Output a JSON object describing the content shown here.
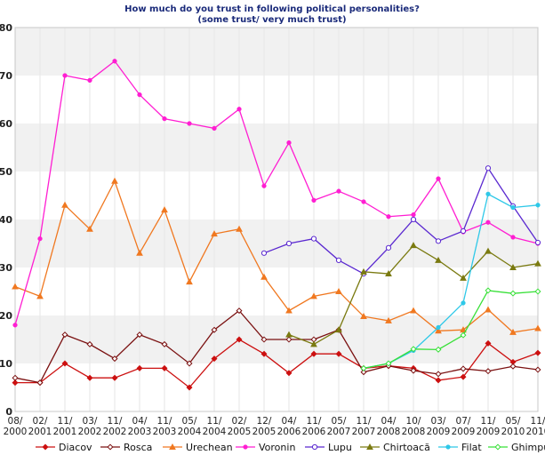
{
  "chart_data": {
    "type": "line",
    "title": "How much do you trust in following political personalities?",
    "subtitle": "(some trust/ very much trust)",
    "xlabel": "",
    "ylabel": "",
    "ylim": [
      0,
      80
    ],
    "yticks": [
      0,
      10,
      20,
      30,
      40,
      50,
      60,
      70,
      80
    ],
    "grid": "horizontal bands",
    "legend_position": "bottom",
    "categories": [
      "08/ 2000",
      "02/ 2001",
      "11/ 2001",
      "03/ 2002",
      "11/ 2002",
      "04/ 2003",
      "11/ 2003",
      "05/ 2004",
      "11/ 2004",
      "02/ 2005",
      "12/ 2005",
      "04/ 2006",
      "11/ 2006",
      "05/ 2007",
      "11/ 2007",
      "04/ 2008",
      "10/ 2008",
      "03/ 2009",
      "07/ 2009",
      "11/ 2009",
      "05/ 2010",
      "11/ 2010"
    ],
    "series": [
      {
        "name": "Diacov",
        "color": "#cc1010",
        "marker": "diamond-filled",
        "values": [
          6,
          6,
          10,
          7,
          7,
          9,
          9,
          5,
          11,
          15,
          12,
          8,
          12,
          12,
          9,
          9.5,
          9,
          6.5,
          7.2,
          14.2,
          10.3,
          12.2
        ]
      },
      {
        "name": "Rosca",
        "color": "#7a1010",
        "marker": "diamond-open",
        "values": [
          7,
          6,
          16,
          14,
          11,
          16,
          14,
          10,
          17,
          21,
          15,
          15,
          15,
          17,
          8.2,
          9.5,
          8.5,
          7.8,
          8.9,
          8.4,
          9.4,
          8.7
        ]
      },
      {
        "name": "Urechean",
        "color": "#f07820",
        "marker": "triangle-filled",
        "values": [
          26,
          24,
          43,
          38,
          48,
          33,
          42,
          27,
          37,
          38,
          28,
          21,
          24,
          25,
          19.8,
          18.9,
          21,
          16.8,
          17,
          21.2,
          16.5,
          17.3
        ]
      },
      {
        "name": "Voronin",
        "color": "#ff1ed2",
        "marker": "dot",
        "values": [
          18,
          36,
          70,
          69,
          73,
          66,
          61,
          60,
          59,
          63,
          47,
          56,
          44,
          45.9,
          43.7,
          40.6,
          41,
          48.5,
          37.4,
          39.4,
          36.3,
          35
        ]
      },
      {
        "name": "Lupu",
        "color": "#5a28d0",
        "marker": "circle-open",
        "values": [
          null,
          null,
          null,
          null,
          null,
          null,
          null,
          null,
          null,
          null,
          33,
          35,
          36,
          31.5,
          28.7,
          34.1,
          40,
          35.5,
          37.6,
          50.7,
          42.8,
          35.2
        ]
      },
      {
        "name": "Chirtoacă",
        "color": "#7a7a10",
        "marker": "triangle-filled",
        "values": [
          null,
          null,
          null,
          null,
          null,
          null,
          null,
          null,
          null,
          null,
          null,
          16,
          14,
          17,
          29.1,
          28.7,
          34.6,
          31.5,
          27.8,
          33.4,
          30,
          30.8
        ]
      },
      {
        "name": "Filat",
        "color": "#2ec8e8",
        "marker": "dot",
        "values": [
          null,
          null,
          null,
          null,
          null,
          null,
          null,
          null,
          null,
          null,
          null,
          null,
          null,
          null,
          9,
          10,
          12.7,
          17.5,
          22.6,
          45.3,
          42.5,
          43
        ]
      },
      {
        "name": "Ghimpu",
        "color": "#38e038",
        "marker": "diamond-open",
        "values": [
          null,
          null,
          null,
          null,
          null,
          null,
          null,
          null,
          null,
          null,
          null,
          null,
          null,
          null,
          9,
          10,
          13,
          12.9,
          15.9,
          25.2,
          24.6,
          25
        ]
      }
    ]
  }
}
